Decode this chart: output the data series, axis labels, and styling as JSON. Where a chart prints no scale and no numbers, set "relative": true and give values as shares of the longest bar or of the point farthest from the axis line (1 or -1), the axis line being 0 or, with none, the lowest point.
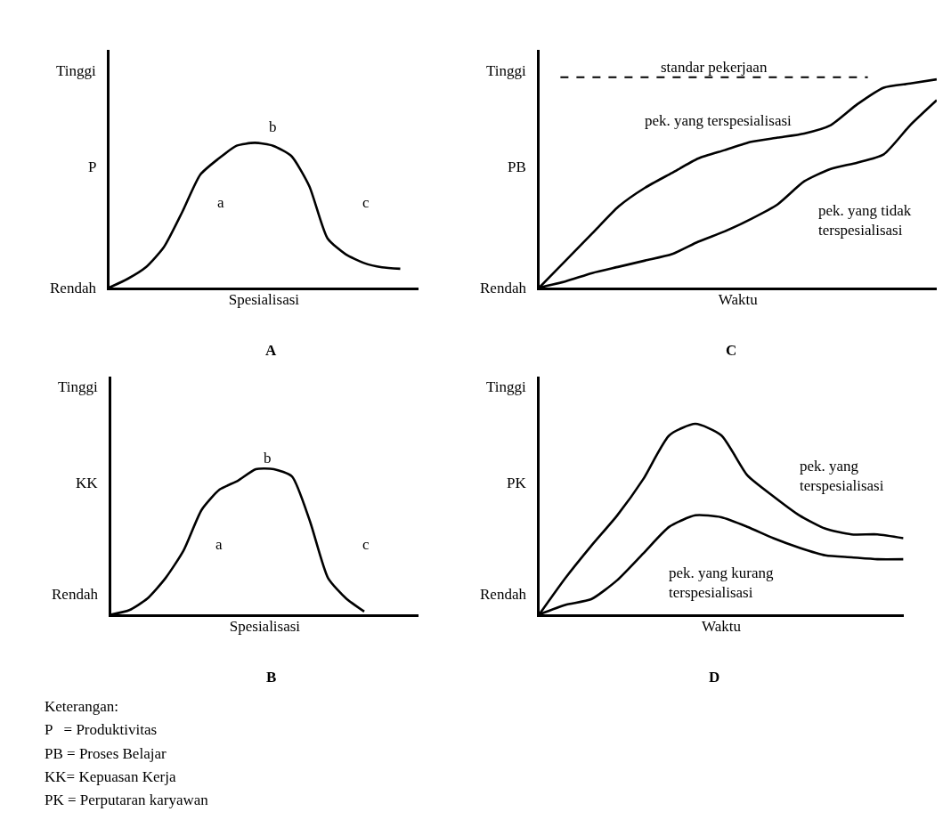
{
  "chart_data": [
    {
      "type": "line",
      "title": "A",
      "xlabel": "Spesialisasi",
      "ylabel": "P",
      "categories": [
        null,
        null,
        null,
        null,
        null,
        null,
        null,
        null,
        null,
        null,
        null,
        null,
        null,
        null,
        null,
        null,
        null,
        null
      ],
      "relative": true,
      "tick_labels": false,
      "line_style": "solid",
      "marker": "none",
      "series": [
        {
          "color": "#000000",
          "values": [
            0,
            0.06,
            0.14,
            0.28,
            0.52,
            0.78,
            0.89,
            0.98,
            1,
            0.98,
            0.91,
            0.7,
            0.34,
            0.23,
            0.17,
            0.14,
            0.13,
            null
          ]
        }
      ],
      "annotations": [
        "Tinggi",
        "Rendah",
        "a",
        "b",
        "c"
      ]
    },
    {
      "type": "line",
      "title": "B",
      "xlabel": "Spesialisasi",
      "ylabel": "KK",
      "categories": [
        null,
        null,
        null,
        null,
        null,
        null,
        null,
        null,
        null,
        null,
        null,
        null,
        null,
        null,
        null,
        null,
        null,
        null
      ],
      "relative": true,
      "tick_labels": false,
      "line_style": "solid",
      "marker": "none",
      "series": [
        {
          "color": "#000000",
          "values": [
            0,
            0.03,
            0.11,
            0.25,
            0.44,
            0.72,
            0.86,
            0.92,
            1,
            1,
            0.95,
            0.64,
            0.25,
            0.11,
            0.02,
            null,
            null,
            null
          ]
        }
      ],
      "annotations": [
        "Tinggi",
        "Rendah",
        "a",
        "b",
        "c"
      ]
    },
    {
      "type": "line",
      "title": "C",
      "xlabel": "Waktu",
      "ylabel": "PB",
      "categories": [
        null,
        null,
        null,
        null,
        null,
        null,
        null,
        null,
        null,
        null,
        null,
        null,
        null,
        null,
        null,
        null
      ],
      "relative": true,
      "tick_labels": false,
      "line_style": "solid",
      "marker": "none",
      "series": [
        {
          "name": "pek. yang terspesialisasi",
          "color": "#000000",
          "values": [
            0,
            0.13,
            0.26,
            0.39,
            0.48,
            0.55,
            0.62,
            0.66,
            0.7,
            0.72,
            0.74,
            0.78,
            0.88,
            0.96,
            0.98,
            1
          ]
        },
        {
          "name": "pek. yang tidak terspesialisasi",
          "color": "#000000",
          "values": [
            0,
            0.03,
            0.07,
            0.1,
            0.13,
            0.16,
            0.22,
            0.27,
            0.33,
            0.4,
            0.51,
            0.57,
            0.6,
            0.64,
            0.78,
            0.9
          ]
        }
      ],
      "ref_lines": [
        {
          "axis": "y",
          "value": 1.01,
          "label": "standar pekerjaan",
          "color": "#000000",
          "line_style": "dashed"
        }
      ],
      "annotations": [
        "Tinggi",
        "Rendah"
      ]
    },
    {
      "type": "line",
      "title": "D",
      "xlabel": "Waktu",
      "ylabel": "PK",
      "categories": [
        null,
        null,
        null,
        null,
        null,
        null,
        null,
        null,
        null,
        null,
        null,
        null,
        null,
        null,
        null
      ],
      "relative": true,
      "tick_labels": false,
      "line_style": "solid",
      "marker": "none",
      "series": [
        {
          "name": "pek. yang terspesialisasi",
          "color": "#000000",
          "values": [
            0,
            0.19,
            0.36,
            0.52,
            0.71,
            0.94,
            1,
            0.94,
            0.73,
            0.62,
            0.52,
            0.45,
            0.42,
            0.42,
            0.4
          ]
        },
        {
          "name": "pek. yang kurang terspesialisasi",
          "color": "#000000",
          "values": [
            0,
            0.05,
            0.08,
            0.18,
            0.32,
            0.46,
            0.52,
            0.51,
            0.46,
            0.4,
            0.35,
            0.31,
            0.3,
            0.29,
            0.29
          ]
        }
      ],
      "annotations": [
        "Tinggi",
        "Rendah"
      ]
    },
    {
      "type": "other",
      "title": "Keterangan:",
      "annotations": [
        "P   = Produktivitas",
        "PB = Proses Belajar",
        "KK= Kepuasan Kerja",
        "PK = Perputaran karyawan"
      ]
    }
  ]
}
